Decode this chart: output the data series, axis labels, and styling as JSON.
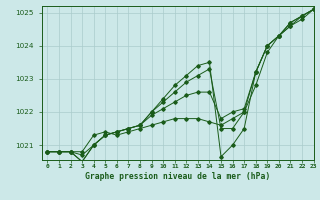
{
  "title": "Graphe pression niveau de la mer (hPa)",
  "bg_color": "#cce8e8",
  "grid_color": "#aacccc",
  "line_color": "#1a5c1a",
  "xlim": [
    -0.5,
    23
  ],
  "ylim": [
    1020.55,
    1025.2
  ],
  "yticks": [
    1021,
    1022,
    1023,
    1024,
    1025
  ],
  "xtick_labels": [
    "0",
    "1",
    "2",
    "3",
    "4",
    "5",
    "6",
    "7",
    "8",
    "9",
    "10",
    "11",
    "12",
    "13",
    "14",
    "15",
    "16",
    "17",
    "18",
    "19",
    "20",
    "21",
    "22",
    "23"
  ],
  "series": [
    [
      1020.8,
      1020.8,
      1020.8,
      1020.8,
      1021.3,
      1021.4,
      1021.3,
      1021.4,
      1021.5,
      1021.6,
      1021.7,
      1021.8,
      1021.8,
      1021.8,
      1021.7,
      1021.6,
      1021.8,
      1022.0,
      1023.2,
      1024.0,
      1024.3,
      1024.7,
      1024.9,
      1025.1
    ],
    [
      1020.8,
      1020.8,
      1020.8,
      1020.7,
      1021.0,
      1021.3,
      1021.4,
      1021.5,
      1021.6,
      1021.9,
      1022.1,
      1022.3,
      1022.5,
      1022.6,
      1022.6,
      1021.8,
      1022.0,
      1022.1,
      1023.2,
      1024.0,
      1024.3,
      1024.7,
      1024.9,
      1025.1
    ],
    [
      1020.8,
      1020.8,
      1020.8,
      1020.5,
      1021.0,
      1021.3,
      1021.4,
      1021.5,
      1021.6,
      1022.0,
      1022.3,
      1022.6,
      1022.9,
      1023.1,
      1023.3,
      1021.5,
      1021.5,
      1022.0,
      1022.8,
      1023.8,
      1024.3,
      1024.6,
      1024.8,
      1025.1
    ],
    [
      1020.8,
      1020.8,
      1020.8,
      1020.5,
      1021.0,
      1021.3,
      1021.4,
      1021.5,
      1021.6,
      1022.0,
      1022.4,
      1022.8,
      1023.1,
      1023.4,
      1023.5,
      1020.65,
      1021.0,
      1021.5,
      1023.2,
      1024.0,
      1024.3,
      1024.6,
      1024.9,
      1025.1
    ]
  ]
}
